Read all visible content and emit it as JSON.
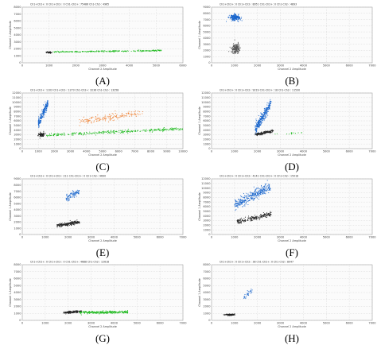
{
  "chart_data": [
    {
      "id": "A",
      "letter": "(A)",
      "type": "scatter",
      "title": "Ch1+Ch2+: 0  Ch1+Ch2-: 0  Ch1-Ch2+: 75486  Ch1-Ch2-: 4965",
      "xlabel": "Channel 2 Amplitude",
      "ylabel": "Channel 1 Amplitude",
      "xlim": [
        0,
        6000
      ],
      "ylim": [
        0,
        8000
      ],
      "xticks": [
        0,
        1000,
        2000,
        3000,
        4000,
        5000,
        6000
      ],
      "yticks": [
        0,
        1000,
        2000,
        3000,
        4000,
        5000,
        6000,
        7000,
        8000
      ],
      "clusters": [
        {
          "color": "#222222",
          "cx": 1000,
          "cy": 1500,
          "sx": 50,
          "sy": 60,
          "n": 60,
          "type": "blob"
        },
        {
          "color": "#22bb22",
          "x0": 1100,
          "x1": 5200,
          "y0": 1550,
          "y1": 1750,
          "sy": 45,
          "n": 260,
          "type": "band"
        }
      ]
    },
    {
      "id": "B",
      "letter": "(B)",
      "type": "scatter",
      "title": "Ch1+Ch2+: 0  Ch1+Ch2-: 8951  Ch1-Ch2+: 0  Ch1-Ch2-: 4893",
      "xlabel": "Channel 2 Amplitude",
      "ylabel": "Channel 1 Amplitude",
      "xlim": [
        0,
        7000
      ],
      "ylim": [
        0,
        9000
      ],
      "xticks": [
        0,
        1000,
        2000,
        3000,
        4000,
        5000,
        6000,
        7000
      ],
      "yticks": [
        0,
        1000,
        2000,
        3000,
        4000,
        5000,
        6000,
        7000,
        8000,
        9000
      ],
      "clusters": [
        {
          "color": "#1a66cc",
          "cx": 1000,
          "cy": 7300,
          "sx": 110,
          "sy": 230,
          "n": 220,
          "type": "blob"
        },
        {
          "color": "#555555",
          "cx": 1050,
          "cy": 2300,
          "sx": 90,
          "sy": 380,
          "n": 180,
          "type": "blob"
        }
      ]
    },
    {
      "id": "C",
      "letter": "(C)",
      "type": "scatter",
      "title": "Ch1+Ch2+: 1103  Ch1+Ch2-: 1273  Ch1-Ch2+: 3236  Ch1-Ch2-: 13258",
      "xlabel": "Channel 2 Amplitude",
      "ylabel": "Channel 1 Amplitude",
      "xlim": [
        0,
        10000
      ],
      "ylim": [
        0,
        12000
      ],
      "xticks": [
        0,
        1000,
        2000,
        3000,
        4000,
        5000,
        6000,
        7000,
        8000,
        9000,
        10000
      ],
      "yticks": [
        0,
        1000,
        2000,
        3000,
        4000,
        5000,
        6000,
        7000,
        8000,
        9000,
        10000,
        11000,
        12000
      ],
      "clusters": [
        {
          "color": "#1a66cc",
          "x0": 1000,
          "x1": 1600,
          "y0": 5500,
          "y1": 10000,
          "sy": 500,
          "n": 220,
          "type": "band"
        },
        {
          "color": "#ee7722",
          "x0": 3500,
          "x1": 7500,
          "y0": 5700,
          "y1": 7800,
          "sy": 350,
          "n": 150,
          "type": "band"
        },
        {
          "color": "#22bb22",
          "x0": 1500,
          "x1": 10000,
          "y0": 2900,
          "y1": 4300,
          "sy": 150,
          "n": 320,
          "type": "band"
        },
        {
          "color": "#222222",
          "cx": 1200,
          "cy": 3000,
          "sx": 110,
          "sy": 250,
          "n": 90,
          "type": "blob"
        }
      ]
    },
    {
      "id": "D",
      "letter": "(D)",
      "type": "scatter",
      "title": "Ch1+Ch2+: 0  Ch1+Ch2-: 9219  Ch1-Ch2+: 18  Ch1-Ch2-: 11530",
      "xlabel": "Channel 2 Amplitude",
      "ylabel": "Channel 1 Amplitude",
      "xlim": [
        0,
        7000
      ],
      "ylim": [
        0,
        12000
      ],
      "xticks": [
        0,
        1000,
        2000,
        3000,
        4000,
        5000,
        6000,
        7000
      ],
      "yticks": [
        0,
        1000,
        2000,
        3000,
        4000,
        5000,
        6000,
        7000,
        8000,
        9000,
        10000,
        11000,
        12000
      ],
      "clusters": [
        {
          "color": "#1a66cc",
          "x0": 1900,
          "x1": 2600,
          "y0": 4000,
          "y1": 10000,
          "sy": 600,
          "n": 300,
          "type": "band"
        },
        {
          "color": "#222222",
          "x0": 1900,
          "x1": 2700,
          "y0": 3000,
          "y1": 3800,
          "sy": 160,
          "n": 160,
          "type": "band"
        },
        {
          "color": "#22bb22",
          "x0": 2700,
          "x1": 4000,
          "y0": 3100,
          "y1": 3400,
          "sy": 80,
          "n": 14,
          "type": "band"
        }
      ]
    },
    {
      "id": "E",
      "letter": "(E)",
      "type": "scatter",
      "title": "Ch1+Ch2+: 0  Ch1+Ch2-: 211  Ch1-Ch2+: 0  Ch1-Ch2-: 9690",
      "xlabel": "Channel 2 Amplitude",
      "ylabel": "Channel 1 Amplitude",
      "xlim": [
        0,
        7000
      ],
      "ylim": [
        0,
        9000
      ],
      "xticks": [
        0,
        1000,
        2000,
        3000,
        4000,
        5000,
        6000,
        7000
      ],
      "yticks": [
        0,
        1000,
        2000,
        3000,
        4000,
        5000,
        6000,
        7000,
        8000,
        9000
      ],
      "clusters": [
        {
          "color": "#1a66cc",
          "x0": 1900,
          "x1": 2500,
          "y0": 5800,
          "y1": 7000,
          "sy": 250,
          "n": 90,
          "type": "band"
        },
        {
          "color": "#222222",
          "x0": 1500,
          "x1": 2500,
          "y0": 1400,
          "y1": 2000,
          "sy": 130,
          "n": 200,
          "type": "band"
        }
      ]
    },
    {
      "id": "F",
      "letter": "(F)",
      "type": "scatter",
      "title": "Ch1+Ch2+: 0  Ch1+Ch2-: 4141  Ch1-Ch2+: 0  Ch1-Ch2-: 15018",
      "xlabel": "Channel 2 Amplitude",
      "ylabel": "Channel 1 Amplitude",
      "xlim": [
        0,
        7000
      ],
      "ylim": [
        0,
        12000
      ],
      "xticks": [
        0,
        1000,
        2000,
        3000,
        4000,
        5000,
        6000,
        7000
      ],
      "yticks": [
        0,
        1000,
        2000,
        3000,
        4000,
        5000,
        6000,
        7000,
        8000,
        9000,
        10000,
        11000,
        12000
      ],
      "clusters": [
        {
          "color": "#1a66cc",
          "x0": 1000,
          "x1": 2600,
          "y0": 6200,
          "y1": 10500,
          "sy": 550,
          "n": 340,
          "type": "band"
        },
        {
          "color": "#222222",
          "x0": 1100,
          "x1": 2600,
          "y0": 2700,
          "y1": 4500,
          "sy": 250,
          "n": 200,
          "type": "band"
        }
      ]
    },
    {
      "id": "G",
      "letter": "(G)",
      "type": "scatter",
      "title": "Ch1+Ch2+: 0  Ch1+Ch2-: 0  Ch1-Ch2+: 4688  Ch1-Ch2-: 12618",
      "xlabel": "Channel 2 Amplitude",
      "ylabel": "Channel 1 Amplitude",
      "xlim": [
        0,
        7000
      ],
      "ylim": [
        0,
        8000
      ],
      "xticks": [
        0,
        1000,
        2000,
        3000,
        4000,
        5000,
        6000,
        7000
      ],
      "yticks": [
        0,
        1000,
        2000,
        3000,
        4000,
        5000,
        6000,
        7000,
        8000
      ],
      "clusters": [
        {
          "color": "#222222",
          "x0": 1800,
          "x1": 2600,
          "y0": 1100,
          "y1": 1300,
          "sy": 80,
          "n": 160,
          "type": "band"
        },
        {
          "color": "#22bb22",
          "x0": 2500,
          "x1": 4600,
          "y0": 1100,
          "y1": 1200,
          "sy": 90,
          "n": 280,
          "type": "band"
        }
      ]
    },
    {
      "id": "H",
      "letter": "(H)",
      "type": "scatter",
      "title": "Ch1+Ch2+: 0  Ch1+Ch2-: 38  Ch1-Ch2+: 0  Ch1-Ch2-: 8047",
      "xlabel": "Channel 2 Amplitude",
      "ylabel": "Channel 1 Amplitude",
      "xlim": [
        0,
        7000
      ],
      "ylim": [
        0,
        8000
      ],
      "xticks": [
        0,
        1000,
        2000,
        3000,
        4000,
        5000,
        6000,
        7000
      ],
      "yticks": [
        0,
        1000,
        2000,
        3000,
        4000,
        5000,
        6000,
        7000,
        8000
      ],
      "clusters": [
        {
          "color": "#1a66cc",
          "x0": 1400,
          "x1": 1800,
          "y0": 3300,
          "y1": 4400,
          "sy": 200,
          "n": 30,
          "type": "band"
        },
        {
          "color": "#222222",
          "cx": 800,
          "cy": 800,
          "sx": 110,
          "sy": 50,
          "n": 130,
          "type": "blob"
        }
      ]
    }
  ]
}
